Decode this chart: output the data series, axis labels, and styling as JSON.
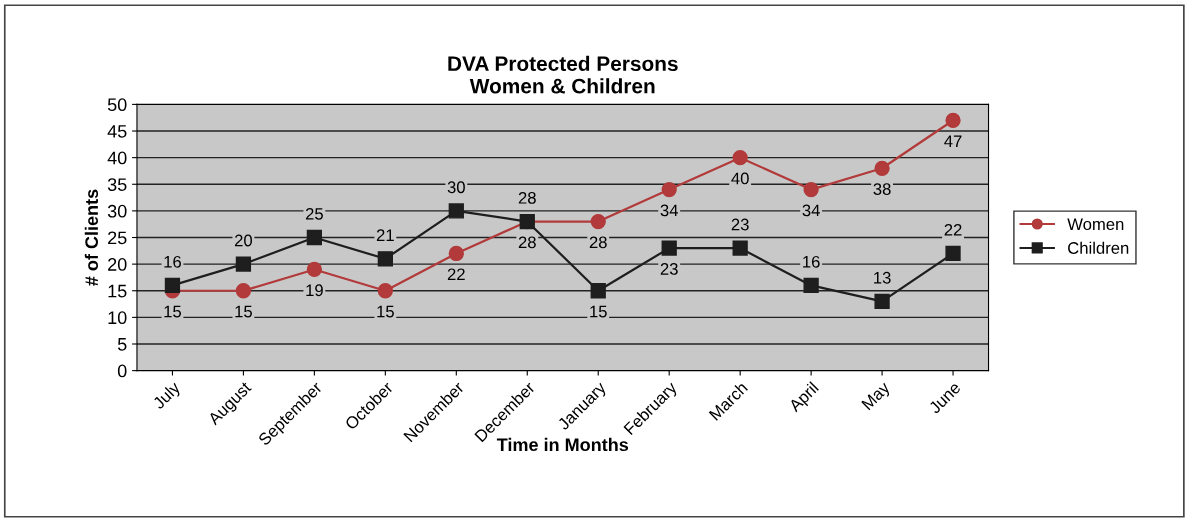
{
  "chart_data": {
    "type": "line",
    "title": "DVA Protected Persons\nWomen & Children",
    "xlabel": "Time in Months",
    "ylabel": "# of Clients",
    "categories": [
      "July",
      "August",
      "September",
      "October",
      "November",
      "December",
      "January",
      "February",
      "March",
      "April",
      "May",
      "June"
    ],
    "series": [
      {
        "name": "Women",
        "color": "#b23a3a",
        "marker": "circle",
        "values": [
          15,
          15,
          19,
          15,
          22,
          28,
          28,
          34,
          40,
          34,
          38,
          47
        ]
      },
      {
        "name": "Children",
        "color": "#1e1e1e",
        "marker": "square",
        "values": [
          16,
          20,
          25,
          21,
          30,
          28,
          15,
          23,
          23,
          16,
          13,
          22
        ]
      }
    ],
    "ylim": [
      0,
      50
    ],
    "yticks": [
      0,
      5,
      10,
      15,
      20,
      25,
      30,
      35,
      40,
      45,
      50
    ],
    "grid": "y",
    "legend": "right",
    "data_labels": true
  }
}
